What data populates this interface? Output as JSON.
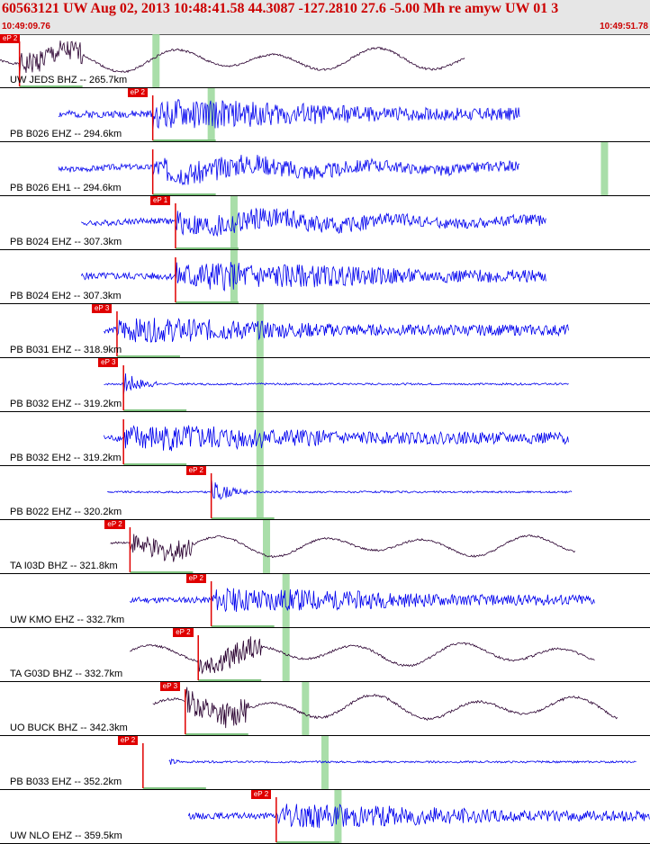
{
  "header": {
    "title": "60563121 UW Aug 02, 2013 10:48:41.58    44.3087 -127.2810 27.6 -5.00 Mh re amyw UW 01    3",
    "start_time": "10:49:09.76",
    "end_time": "10:49:51.78"
  },
  "colors": {
    "header_bg": "#e6e6e6",
    "title": "#cc0000",
    "pick": "#e00000",
    "trace_blue": "#0000ee",
    "trace_dark": "#2a0030",
    "window_green": "#9ad89a",
    "baseline_green": "#7fc27f"
  },
  "tracks": [
    {
      "label": "UW JEDS BHZ -- 265.7km",
      "pick": "eP 2",
      "pick_frac": 0.03,
      "green_frac": 0.24,
      "color": "dark",
      "start_frac": 0.0,
      "end_frac": 0.715,
      "amp": 0.55,
      "style": "long",
      "seed": 1
    },
    {
      "label": "PB B026 EHZ -- 294.6km",
      "pick": "eP 2",
      "pick_frac": 0.235,
      "green_frac": 0.325,
      "color": "blue",
      "start_frac": 0.09,
      "end_frac": 0.8,
      "amp": 0.6,
      "style": "hf",
      "seed": 2
    },
    {
      "label": "PB B026 EH1 -- 294.6km",
      "pick": "",
      "pick_frac": 0.235,
      "green_frac": 0.93,
      "color": "blue",
      "start_frac": 0.09,
      "end_frac": 0.8,
      "amp": 0.55,
      "style": "hfm",
      "seed": 3
    },
    {
      "label": "PB B024 EHZ -- 307.3km",
      "pick": "eP 1",
      "pick_frac": 0.27,
      "green_frac": 0.36,
      "color": "blue",
      "start_frac": 0.125,
      "end_frac": 0.84,
      "amp": 0.55,
      "style": "hfm",
      "seed": 4
    },
    {
      "label": "PB B024 EH2 -- 307.3km",
      "pick": "",
      "pick_frac": 0.27,
      "green_frac": 0.36,
      "color": "blue",
      "start_frac": 0.125,
      "end_frac": 0.84,
      "amp": 0.6,
      "style": "hf",
      "seed": 5
    },
    {
      "label": "PB B031 EHZ -- 318.9km",
      "pick": "eP 3",
      "pick_frac": 0.18,
      "green_frac": 0.4,
      "color": "blue",
      "start_frac": 0.16,
      "end_frac": 0.875,
      "amp": 0.5,
      "style": "hf",
      "seed": 6
    },
    {
      "label": "PB B032 EHZ -- 319.2km",
      "pick": "eP 3",
      "pick_frac": 0.19,
      "green_frac": 0.4,
      "color": "blue",
      "start_frac": 0.16,
      "end_frac": 0.875,
      "amp": 0.45,
      "style": "spike",
      "seed": 7
    },
    {
      "label": "PB B032 EH2 -- 319.2km",
      "pick": "",
      "pick_frac": 0.19,
      "green_frac": 0.4,
      "color": "blue",
      "start_frac": 0.16,
      "end_frac": 0.875,
      "amp": 0.55,
      "style": "hf",
      "seed": 8
    },
    {
      "label": "PB B022 EHZ -- 320.2km",
      "pick": "eP 2",
      "pick_frac": 0.325,
      "green_frac": 0.4,
      "color": "blue",
      "start_frac": 0.165,
      "end_frac": 0.88,
      "amp": 0.45,
      "style": "spike",
      "seed": 9
    },
    {
      "label": "TA I03D BHZ -- 321.8km",
      "pick": "eP 2",
      "pick_frac": 0.2,
      "green_frac": 0.41,
      "color": "dark",
      "start_frac": 0.17,
      "end_frac": 0.885,
      "amp": 0.5,
      "style": "long",
      "seed": 10
    },
    {
      "label": "UW KMO EHZ -- 332.7km",
      "pick": "eP 2",
      "pick_frac": 0.325,
      "green_frac": 0.44,
      "color": "blue",
      "start_frac": 0.2,
      "end_frac": 0.915,
      "amp": 0.5,
      "style": "hf",
      "seed": 11
    },
    {
      "label": "TA G03D BHZ -- 332.7km",
      "pick": "eP 2",
      "pick_frac": 0.305,
      "green_frac": 0.44,
      "color": "dark",
      "start_frac": 0.2,
      "end_frac": 0.915,
      "amp": 0.55,
      "style": "long",
      "seed": 12
    },
    {
      "label": "UO BUCK BHZ -- 342.3km",
      "pick": "eP 3",
      "pick_frac": 0.285,
      "green_frac": 0.47,
      "color": "dark",
      "start_frac": 0.235,
      "end_frac": 0.95,
      "amp": 0.6,
      "style": "long",
      "seed": 13
    },
    {
      "label": "PB B033 EHZ -- 352.2km",
      "pick": "eP 2",
      "pick_frac": 0.22,
      "green_frac": 0.5,
      "color": "blue",
      "start_frac": 0.26,
      "end_frac": 0.98,
      "amp": 0.45,
      "style": "spike",
      "seed": 14
    },
    {
      "label": "UW NLO EHZ -- 359.5km",
      "pick": "eP 2",
      "pick_frac": 0.425,
      "green_frac": 0.52,
      "color": "blue",
      "start_frac": 0.29,
      "end_frac": 1.0,
      "amp": 0.5,
      "style": "hf",
      "seed": 15
    }
  ]
}
